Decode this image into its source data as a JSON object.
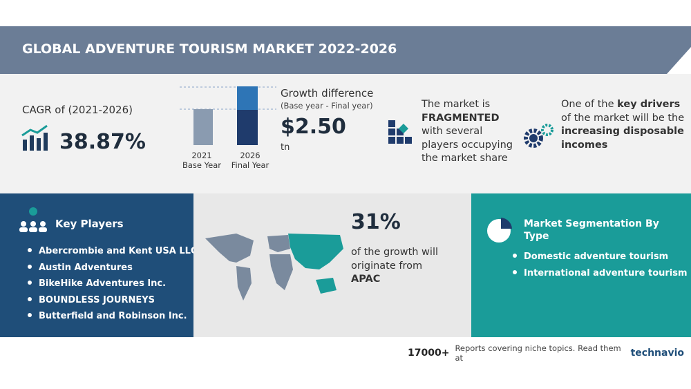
{
  "header": {
    "title": "GLOBAL ADVENTURE TOURISM MARKET 2022-2026"
  },
  "cagr": {
    "label": "CAGR of (2021-2026)",
    "value": "38.87%"
  },
  "growth": {
    "years": [
      {
        "year": "2021",
        "label": "Base Year"
      },
      {
        "year": "2026",
        "label": "Final Year"
      }
    ],
    "title": "Growth difference",
    "subtitle": "(Base year - Final year)",
    "value": "$2.50",
    "unit": "tn"
  },
  "market": {
    "before": "The market is",
    "emphasis": "FRAGMENTED",
    "after": "with several players occupying the market share"
  },
  "drivers": {
    "before": "One of the",
    "emphasis": "key drivers",
    "middle": "of the market will be the",
    "driver": "increasing disposable incomes"
  },
  "key_players": {
    "title": "Key Players",
    "items": [
      "Abercrombie and Kent USA LLC",
      "Austin Adventures",
      "BikeHike Adventures Inc.",
      "BOUNDLESS JOURNEYS",
      "Butterfield and Robinson Inc."
    ]
  },
  "region": {
    "share": "31%",
    "text": "of the growth will originate from",
    "name": "APAC"
  },
  "segmentation": {
    "title": "Market Segmentation By Type",
    "items": [
      "Domestic adventure tourism",
      "International adventure tourism"
    ]
  },
  "footer": {
    "count": "17000+",
    "text": "Reports covering niche topics. Read them at",
    "brand": "technavio"
  }
}
